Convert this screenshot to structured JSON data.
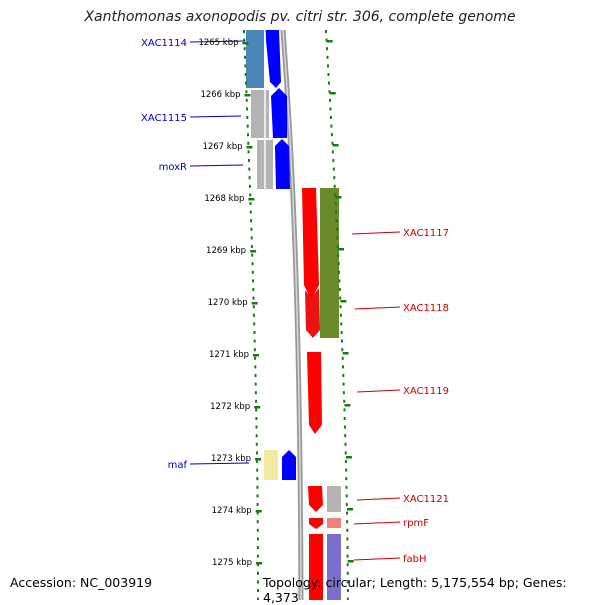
{
  "title": "Xanthomonas axonopodis pv. citri str. 306, complete genome",
  "accession": "Accession: NC_003919",
  "topology": "Topology: circular; Length: 5,175,554 bp; Genes: 4,373",
  "ticks": [
    {
      "label": "1265 kbp",
      "kbp": 1265
    },
    {
      "label": "1266 kbp",
      "kbp": 1266
    },
    {
      "label": "1267 kbp",
      "kbp": 1267
    },
    {
      "label": "1268 kbp",
      "kbp": 1268
    },
    {
      "label": "1269 kbp",
      "kbp": 1269
    },
    {
      "label": "1270 kbp",
      "kbp": 1270
    },
    {
      "label": "1271 kbp",
      "kbp": 1271
    },
    {
      "label": "1272 kbp",
      "kbp": 1272
    },
    {
      "label": "1273 kbp",
      "kbp": 1273
    },
    {
      "label": "1274 kbp",
      "kbp": 1274
    },
    {
      "label": "1275 kbp",
      "kbp": 1275
    }
  ],
  "genes_left": [
    {
      "name": "XAC1114",
      "color": "#0000cc"
    },
    {
      "name": "XAC1115",
      "color": "#0000cc"
    },
    {
      "name": "moxR",
      "color": "#0000cc"
    },
    {
      "name": "maf",
      "color": "#0000cc"
    }
  ],
  "genes_right": [
    {
      "name": "XAC1117",
      "color": "#cc0000"
    },
    {
      "name": "XAC1118",
      "color": "#cc0000"
    },
    {
      "name": "XAC1119",
      "color": "#cc0000"
    },
    {
      "name": "XAC1121",
      "color": "#cc0000"
    },
    {
      "name": "rpmF",
      "color": "#cc0000"
    },
    {
      "name": "fabH",
      "color": "#cc0000"
    }
  ],
  "colors": {
    "forward_strand": "#0000ff",
    "reverse_strand": "#ff0000",
    "ruler": "#1a7a1a",
    "backbone": "#888888",
    "cog_steelblue": "#4a86b8",
    "cog_gray": "#b4b4b4",
    "cog_olive": "#6b8a2a",
    "cog_yellow": "#f2eaa0",
    "cog_lavender": "#7a6fcc"
  }
}
